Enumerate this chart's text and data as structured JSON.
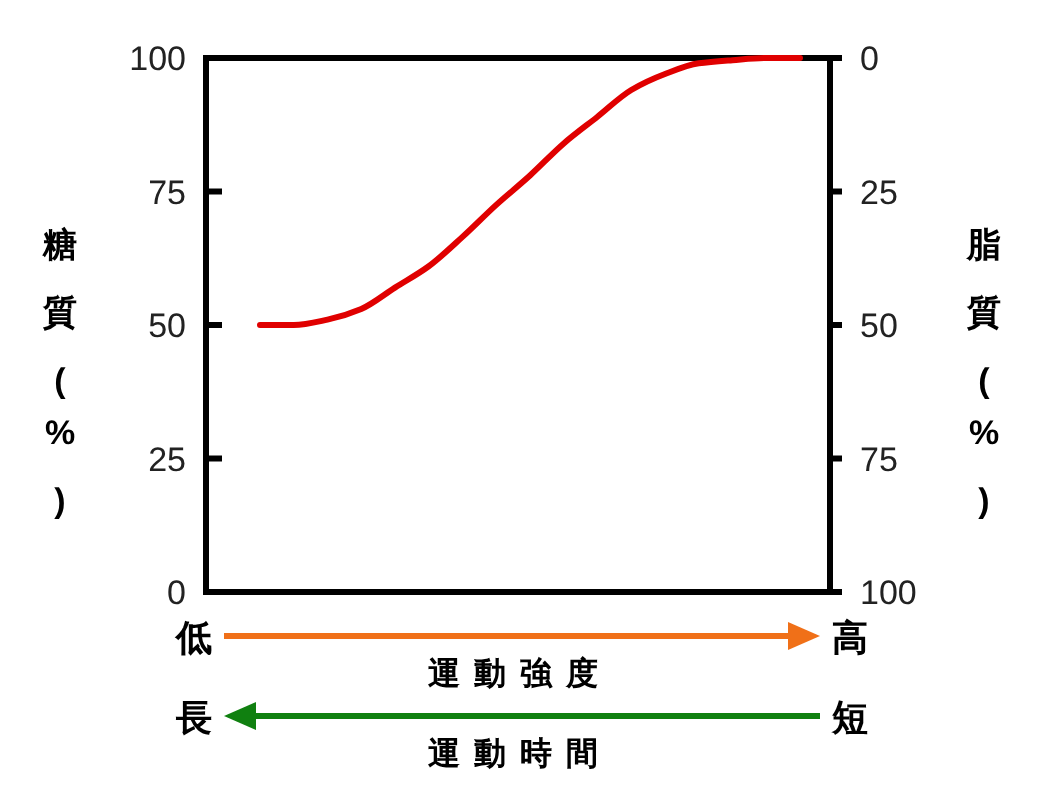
{
  "chart_data": {
    "type": "line",
    "categories": [
      null,
      null,
      null,
      null,
      null,
      null,
      null,
      null,
      null,
      null,
      null,
      null,
      null,
      null,
      null,
      null,
      null
    ],
    "values": [
      50,
      50,
      51,
      53,
      57,
      61,
      66.5,
      72.5,
      78,
      84,
      89,
      94,
      97,
      99,
      99.6,
      100,
      100
    ],
    "color": "#e00000",
    "ylim": [
      0,
      100
    ],
    "yticks": [
      0,
      25,
      50,
      75,
      100
    ],
    "y2lim": [
      100,
      0
    ],
    "y2ticks": [
      0,
      25,
      50,
      75,
      100
    ],
    "ylabel": "糖質(%)",
    "y2label": "脂質(%)",
    "annotations": [
      "低",
      "高",
      "運動強度",
      "長",
      "短",
      "運動時間"
    ]
  }
}
